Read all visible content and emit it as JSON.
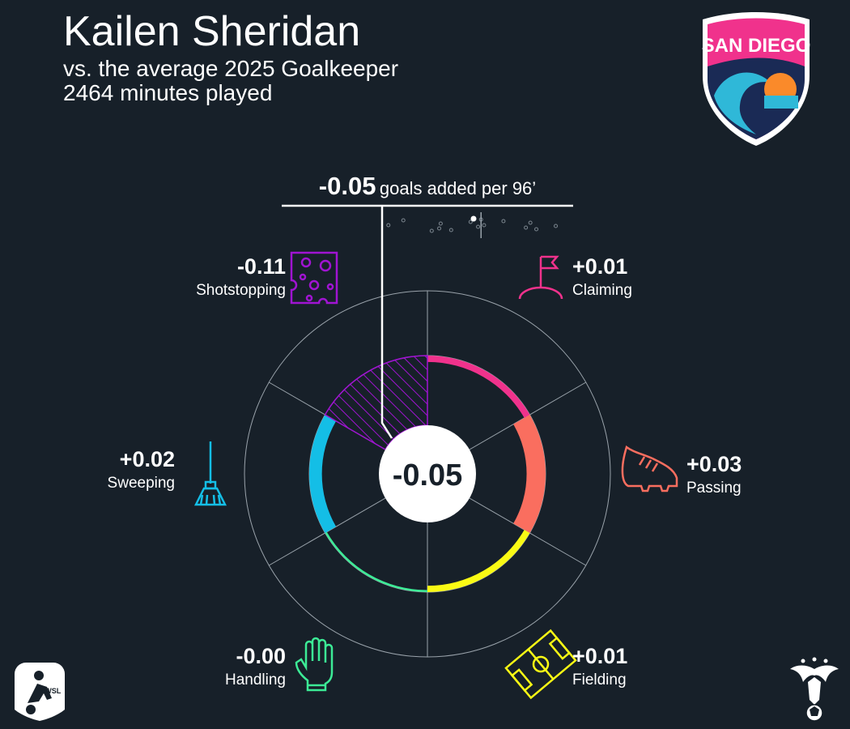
{
  "header": {
    "title": "Kailen Sheridan",
    "subtitle": "vs. the average 2025 Goalkeeper",
    "minutes": "2464 minutes played"
  },
  "headline": {
    "value": "-0.05",
    "label": "goals added per 96’"
  },
  "center_value": "-0.05",
  "logos": {
    "team": "SAN DIEGO",
    "league": "NWSL"
  },
  "colors": {
    "background": "#172029",
    "claiming": "#f0328c",
    "passing": "#fa6e5f",
    "fielding": "#fafa14",
    "handling": "#3ceb96",
    "sweeping": "#14bee6",
    "shotstopping": "#a014d2"
  },
  "chart_data": {
    "type": "radial-bar",
    "categories": [
      "Claiming",
      "Passing",
      "Fielding",
      "Handling",
      "Sweeping",
      "Shotstopping"
    ],
    "values": [
      0.01,
      0.03,
      0.01,
      -0.0,
      0.02,
      -0.11
    ],
    "value_labels": [
      "+0.01",
      "+0.03",
      "+0.01",
      "-0.00",
      "+0.02",
      "-0.11"
    ],
    "icons": [
      "corner-flag-icon",
      "boot-icon",
      "pitch-icon",
      "glove-icon",
      "broom-icon",
      "cheese-icon"
    ],
    "distribution": {
      "others": [
        -0.62,
        -0.52,
        -0.28,
        -0.27,
        -0.2,
        -0.07,
        -0.02,
        0.02,
        0.15,
        0.3,
        0.33,
        0.37,
        0.5,
        -0.33,
        0.0
      ],
      "player": -0.05,
      "average": 0.0
    }
  }
}
